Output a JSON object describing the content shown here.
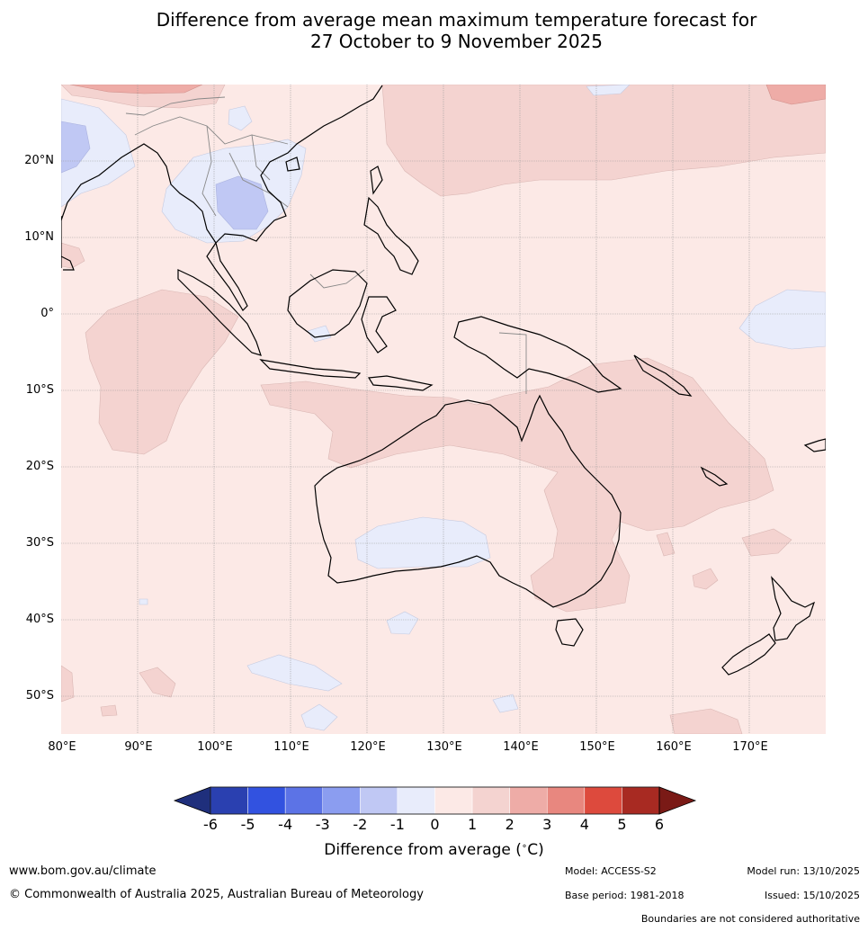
{
  "title": {
    "line1": "Difference from average mean maximum temperature forecast for",
    "line2": "27 October to 9 November 2025"
  },
  "map": {
    "latitude_labels": [
      "20°N",
      "10°N",
      "0°",
      "10°S",
      "20°S",
      "30°S",
      "40°S",
      "50°S"
    ],
    "longitude_labels": [
      "80°E",
      "90°E",
      "100°E",
      "110°E",
      "120°E",
      "130°E",
      "140°E",
      "150°E",
      "160°E",
      "170°E"
    ],
    "extent": {
      "lon_min": 80,
      "lon_max": 180,
      "lat_min": -55,
      "lat_max": 30
    },
    "background_anomaly_range": "0 to 1",
    "colors": {
      "neutral_warm": "#fce9e6",
      "warm_1_2": "#f4d3d0",
      "warm_2_3": "#eeaca7",
      "cool_0_m1": "#e8ecfb",
      "cool_m1_m2": "#c0c8f4",
      "coastline": "#000000",
      "boundary": "#888888",
      "grid": "#999999"
    }
  },
  "colorbar": {
    "ticks": [
      "-6",
      "-5",
      "-4",
      "-3",
      "-2",
      "-1",
      "0",
      "1",
      "2",
      "3",
      "4",
      "5",
      "6"
    ],
    "colors": [
      "#1f2f7c",
      "#2a40b0",
      "#3252e0",
      "#5c73e6",
      "#8b9df0",
      "#c0c8f4",
      "#e8ecfb",
      "#fce9e6",
      "#f4d3d0",
      "#eeaca7",
      "#e8877f",
      "#dd4a3d",
      "#a82a22",
      "#7a1a16"
    ],
    "label": "Difference from average (",
    "label_unit_symbol": "°C",
    "label_close": ")"
  },
  "footer": {
    "website": "www.bom.gov.au/climate",
    "copyright": "© Commonwealth of Australia 2025, Australian Bureau of Meteorology",
    "model": "Model: ACCESS-S2",
    "model_run": "Model run: 13/10/2025",
    "base_period": "Base period: 1981-2018",
    "issued": "Issued: 15/10/2025",
    "boundaries_note": "Boundaries are not considered authoritative"
  }
}
